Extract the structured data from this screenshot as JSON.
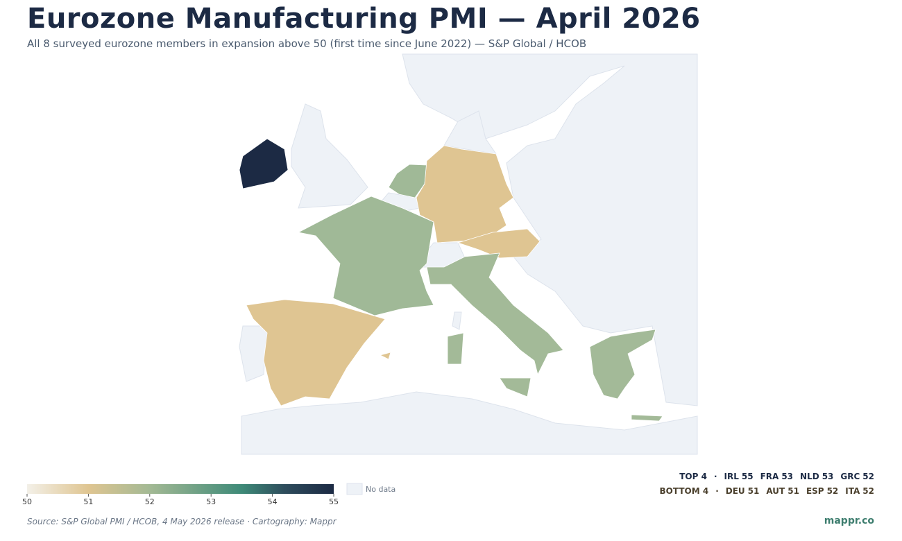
{
  "title": "Eurozone Manufacturing PMI — April 2026",
  "subtitle": "All 8 surveyed eurozone members in expansion above 50 (first time since June 2022) — S&P Global / HCOB",
  "ranking": {
    "separator": "·",
    "top": {
      "label": "TOP 4",
      "items": [
        {
          "code": "IRL",
          "value": 55,
          "color": "#1c2a44"
        },
        {
          "code": "FRA",
          "value": 53,
          "color": "#a0b997"
        },
        {
          "code": "NLD",
          "value": 53,
          "color": "#a0b997"
        },
        {
          "code": "GRC",
          "value": 52,
          "color": "#a3ba98"
        }
      ]
    },
    "bottom": {
      "label": "BOTTOM 4",
      "items": [
        {
          "code": "DEU",
          "value": 51,
          "color": "#dfc592"
        },
        {
          "code": "AUT",
          "value": 51,
          "color": "#dfc592"
        },
        {
          "code": "ESP",
          "value": 52,
          "color": "#dfc592"
        },
        {
          "code": "ITA",
          "value": 52,
          "color": "#a3ba98"
        }
      ]
    }
  },
  "colorbar": {
    "range": [
      50,
      55
    ],
    "ticks": [
      50,
      51,
      52,
      53,
      54,
      55
    ],
    "stops": [
      [
        50,
        "#f3f0e8"
      ],
      [
        51,
        "#dfc591"
      ],
      [
        52,
        "#a3b994"
      ],
      [
        53.5,
        "#3e8a78"
      ],
      [
        54.2,
        "#2e4c5c"
      ],
      [
        55,
        "#1c2a44"
      ]
    ]
  },
  "no_data": {
    "label": "No data",
    "color": "#eef2f7"
  },
  "source": "Source: S&P Global PMI / HCOB, 4 May 2026 release · Cartography: Mappr",
  "brand": "mappr.co"
}
